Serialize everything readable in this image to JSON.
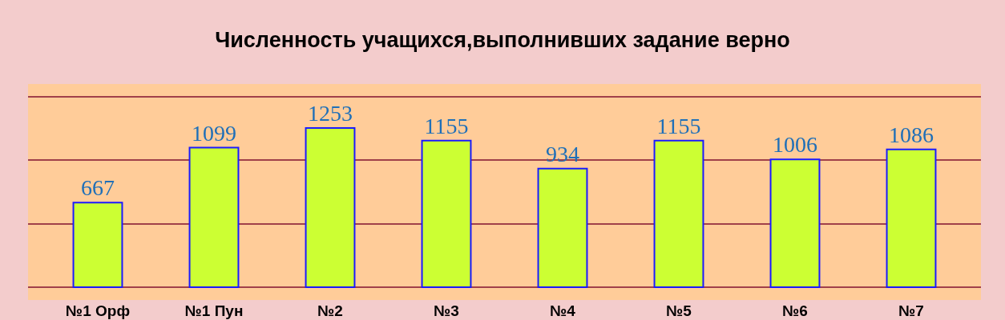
{
  "chart_data": {
    "type": "bar",
    "title": "Численность учащихся,выполнивших задание верно",
    "categories": [
      "№1 Орф",
      "№1 Пун",
      "№2",
      "№3",
      "№4",
      "№5",
      "№6",
      "№7"
    ],
    "values": [
      667,
      1099,
      1253,
      1155,
      934,
      1155,
      1006,
      1086
    ],
    "color": "#ccff33",
    "data_labels": true,
    "ylim": [
      -100,
      1600
    ],
    "yticks": [
      {
        "value": 0,
        "label": null
      },
      {
        "value": 500,
        "label": null
      },
      {
        "value": 1000,
        "label": null
      },
      {
        "value": 1500,
        "label": null
      }
    ],
    "grid": "y"
  }
}
